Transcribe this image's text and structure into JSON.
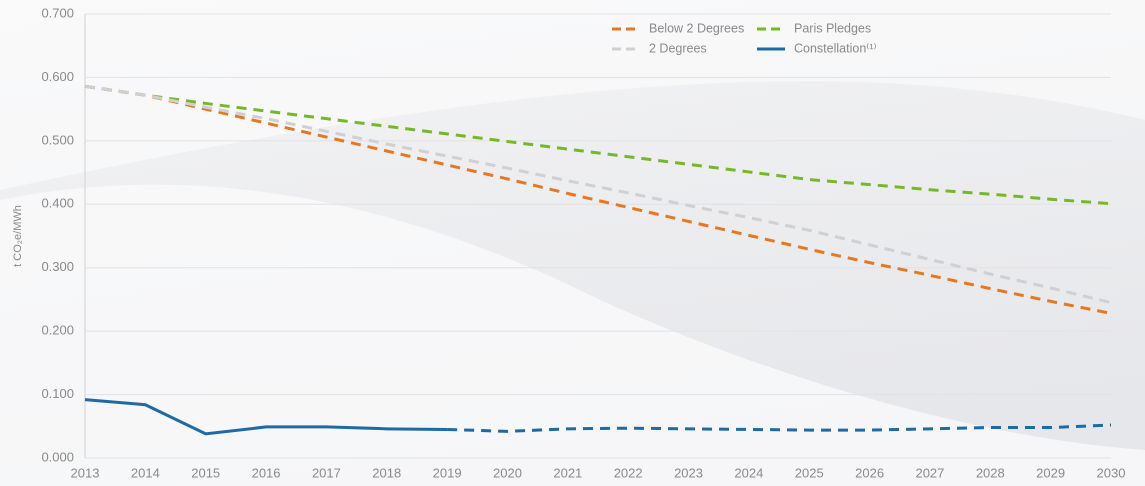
{
  "chart_data": {
    "type": "line",
    "y_label": "t CO₂e/MWh",
    "x": [
      2013,
      2014,
      2015,
      2016,
      2017,
      2018,
      2019,
      2020,
      2021,
      2022,
      2023,
      2024,
      2025,
      2026,
      2027,
      2028,
      2029,
      2030
    ],
    "xlim": [
      2013,
      2030
    ],
    "xticks": [
      2013,
      2014,
      2015,
      2016,
      2017,
      2018,
      2019,
      2020,
      2021,
      2022,
      2023,
      2024,
      2025,
      2026,
      2027,
      2028,
      2029,
      2030
    ],
    "ylim": [
      0,
      0.7
    ],
    "yticks": [
      {
        "value": 0,
        "label": "0.000"
      },
      {
        "value": 0.1,
        "label": "0.100"
      },
      {
        "value": 0.2,
        "label": "0.200"
      },
      {
        "value": 0.3,
        "label": "0.300"
      },
      {
        "value": 0.4,
        "label": "0.400"
      },
      {
        "value": 0.5,
        "label": "0.500"
      },
      {
        "value": 0.6,
        "label": "0.600"
      },
      {
        "value": 0.7,
        "label": "0.700"
      }
    ],
    "grid": true,
    "legend": "top-right",
    "series": [
      {
        "name": "Below 2 Degrees",
        "color": "#e87722",
        "dashed": true,
        "values": [
          0.586,
          0.572,
          0.55,
          0.528,
          0.506,
          0.484,
          0.462,
          0.44,
          0.417,
          0.395,
          0.373,
          0.351,
          0.329,
          0.308,
          0.288,
          0.267,
          0.247,
          0.228
        ]
      },
      {
        "name": "Paris Pledges",
        "color": "#76b82a",
        "dashed": true,
        "values": [
          0.586,
          0.572,
          0.559,
          0.547,
          0.535,
          0.523,
          0.511,
          0.499,
          0.487,
          0.475,
          0.463,
          0.451,
          0.439,
          0.431,
          0.423,
          0.416,
          0.408,
          0.401
        ]
      },
      {
        "name": "2 Degrees",
        "color": "#cfcfd4",
        "dashed": true,
        "values": [
          0.586,
          0.572,
          0.553,
          0.535,
          0.515,
          0.495,
          0.476,
          0.457,
          0.437,
          0.418,
          0.398,
          0.379,
          0.359,
          0.336,
          0.313,
          0.29,
          0.268,
          0.245
        ]
      },
      {
        "name": "Constellation⁽¹⁾",
        "color": "#1f6aa5",
        "dashed": false,
        "dashed_after": 2019,
        "values": [
          0.092,
          0.084,
          0.038,
          0.049,
          0.049,
          0.046,
          0.045,
          0.042,
          0.046,
          0.047,
          0.046,
          0.045,
          0.044,
          0.044,
          0.046,
          0.048,
          0.048,
          0.052
        ]
      }
    ]
  }
}
